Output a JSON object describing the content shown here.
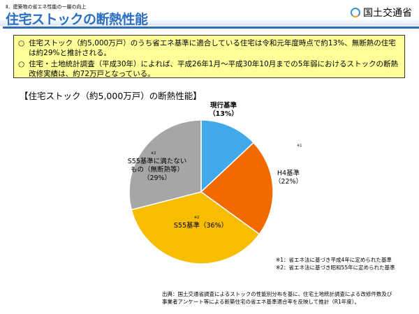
{
  "header": {
    "section": "Ⅱ．建築物の省エネ性能の一層の向上",
    "title": "住宅ストックの断熱性能",
    "org": "国土交通省"
  },
  "summary": {
    "bullet": "○",
    "items": [
      "住宅ストック（約5,000万戸）のうち省エネ基準に適合している住宅は令和元年度時点で約13%、無断熱の住宅は約29%と推計される。",
      "住宅・土地統計調査（平成30年）によれば、平成26年1月～平成30年10月までの5年弱におけるストックの断熱改修実績は、約72万戸となっている。"
    ]
  },
  "chart_data": {
    "type": "pie",
    "title": "【住宅ストック（約5,000万戸）の断熱性能】",
    "slices": [
      {
        "label": "現行基準",
        "pct_label": "（13%）",
        "value": 13,
        "color": "#41a8ea",
        "note": ""
      },
      {
        "label": "H4基準",
        "pct_label": "（22%）",
        "value": 22,
        "color": "#f06a00",
        "note": "※1"
      },
      {
        "label": "S55基準",
        "pct_label": "（36%）",
        "value": 36,
        "color": "#f7bd00",
        "note": "※2"
      },
      {
        "label": "S55基準に満たないもの（無断熱等）",
        "pct_label": "（29%）",
        "value": 29,
        "color": "#a6a6a6",
        "note": "※2"
      }
    ]
  },
  "notes": [
    "※1：省エネ法に基づき平成4年に定められた基準",
    "※2：省エネ法に基づき昭和55年に定められた基準"
  ],
  "source": [
    "出典：国土交通省調査によるストックの性能別分布を基に、住宅土地統計調査による改修件数及び",
    "事業者アンケート等による新築住宅の省エネ基準適合率を反映して推計（R1年度）。"
  ]
}
